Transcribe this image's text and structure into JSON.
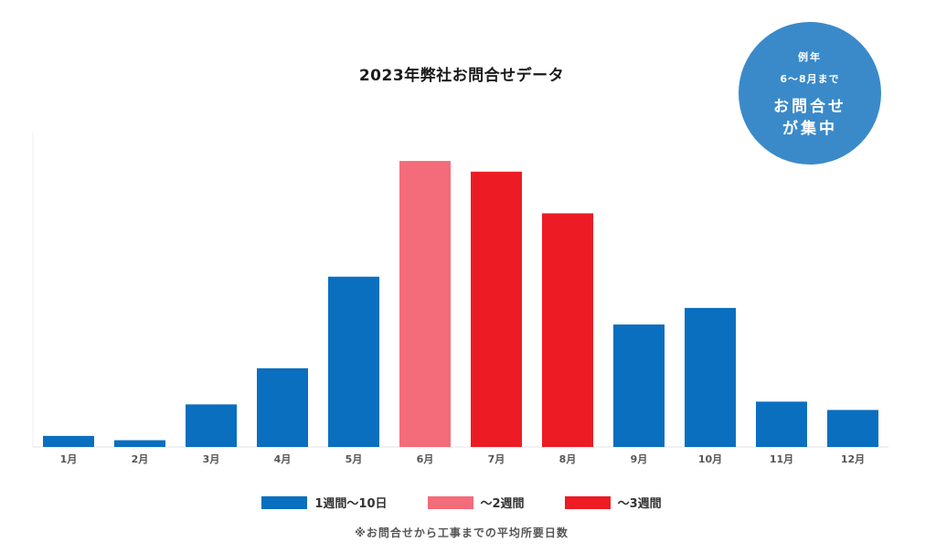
{
  "badge": {
    "line1": "例年",
    "line2": "6〜8月まで",
    "line3": "お問合せ",
    "line4": "が集中",
    "color": "#3a8ac9"
  },
  "legend": [
    {
      "label": "1週間〜10日",
      "color": "#0a6fbf"
    },
    {
      "label": "〜2週間",
      "color": "#f46b7a"
    },
    {
      "label": "〜3週間",
      "color": "#ed1c24"
    }
  ],
  "footnote": "※お問合せから工事までの平均所要日数",
  "chart_data": {
    "type": "bar",
    "title": "2023年弊社お問合せデータ",
    "xlabel": "",
    "ylabel": "",
    "categories": [
      "1月",
      "2月",
      "3月",
      "4月",
      "5月",
      "6月",
      "7月",
      "8月",
      "9月",
      "10月",
      "11月",
      "12月"
    ],
    "values": [
      3.6,
      2.2,
      13.9,
      25.7,
      55.6,
      93.4,
      89.9,
      76.3,
      40.0,
      45.4,
      14.8,
      12.1
    ],
    "value_groups": [
      0,
      0,
      0,
      0,
      0,
      1,
      2,
      2,
      0,
      0,
      0,
      0
    ],
    "ylim": [
      0,
      100
    ],
    "grid": false,
    "legend_position": "bottom"
  }
}
